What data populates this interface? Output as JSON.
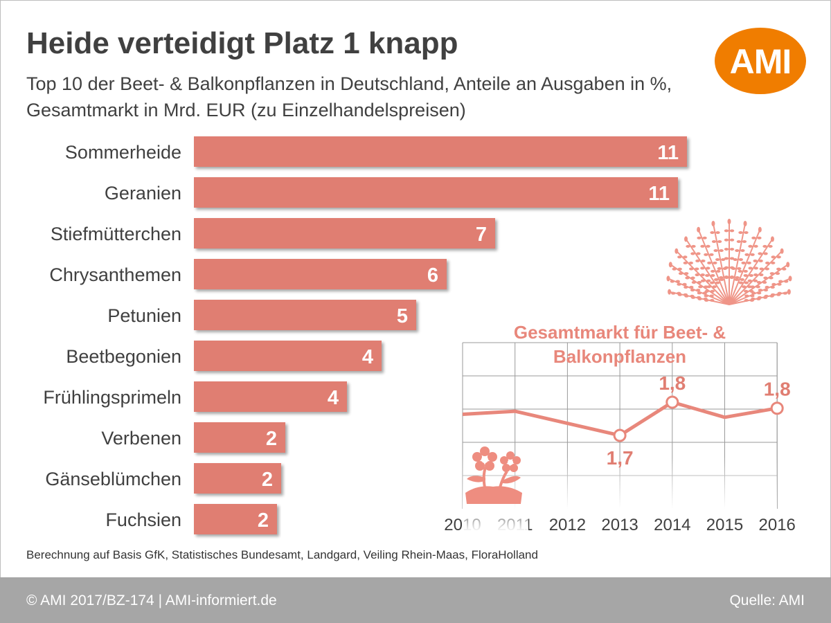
{
  "title": "Heide verteidigt Platz 1 knapp",
  "subtitle_line1": "Top 10 der Beet- & Balkonpflanzen in Deutschland, Anteile an Ausgaben in %,",
  "subtitle_line2": "Gesamtmarkt in Mrd. EUR (zu Einzelhandelspreisen)",
  "logo_text": "AMI",
  "source_note": "Berechnung auf Basis GfK, Statistisches Bundesamt, Landgard, Veiling Rhein-Maas, FloraHolland",
  "footer": {
    "left": "© AMI 2017/BZ-174 | AMI-informiert.de",
    "right": "Quelle: AMI"
  },
  "icons": [
    "heather-icon",
    "flower-pot-icon"
  ],
  "colors": {
    "bar": "#e07e72",
    "accent": "#e8877b",
    "logo": "#f07d00",
    "footer": "#a6a6a6"
  },
  "chart_data": [
    {
      "type": "bar",
      "orientation": "horizontal",
      "categories": [
        "Sommerheide",
        "Geranien",
        "Stiefmütterchen",
        "Chrysanthemen",
        "Petunien",
        "Beetbegonien",
        "Frühlingsprimeln",
        "Verbenen",
        "Gänseblümchen",
        "Fuchsien"
      ],
      "values": [
        11.3,
        11.1,
        6.9,
        5.8,
        5.1,
        4.3,
        3.5,
        2.1,
        2.0,
        1.9
      ],
      "labels": [
        "11",
        "11",
        "7",
        "6",
        "5",
        "4",
        "4",
        "2",
        "2",
        "2"
      ],
      "xlim": [
        0,
        12
      ]
    },
    {
      "type": "line",
      "title_line1": "Gesamtmarkt für Beet- &",
      "title_line2": "Balkonpflanzen",
      "x": [
        "2010",
        "2011",
        "2012",
        "2013",
        "2014",
        "2015",
        "2016"
      ],
      "values": [
        1.77,
        1.78,
        1.74,
        1.7,
        1.81,
        1.76,
        1.79
      ],
      "labeled_points": [
        {
          "x": "2013",
          "label": "1,7",
          "position": "below"
        },
        {
          "x": "2014",
          "label": "1,8",
          "position": "above"
        },
        {
          "x": "2016",
          "label": "1,8",
          "position": "above"
        }
      ],
      "ylim": [
        1.55,
        1.95
      ],
      "grid": true
    }
  ]
}
